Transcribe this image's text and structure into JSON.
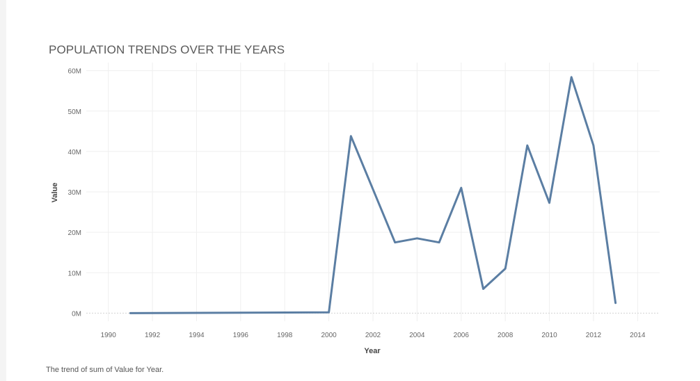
{
  "chart_data": {
    "type": "line",
    "title": "POPULATION TRENDS OVER THE YEARS",
    "caption": "The trend of sum of Value for Year.",
    "xlabel": "Year",
    "ylabel": "Value",
    "xlim": [
      1989,
      2015
    ],
    "ylim": [
      -2000000,
      62000000
    ],
    "x_ticks": [
      1990,
      1992,
      1994,
      1996,
      1998,
      2000,
      2002,
      2004,
      2006,
      2008,
      2010,
      2012,
      2014
    ],
    "y_ticks": [
      {
        "value": 0,
        "label": "0M"
      },
      {
        "value": 10000000,
        "label": "10M"
      },
      {
        "value": 20000000,
        "label": "20M"
      },
      {
        "value": 30000000,
        "label": "30M"
      },
      {
        "value": 40000000,
        "label": "40M"
      },
      {
        "value": 50000000,
        "label": "50M"
      },
      {
        "value": 60000000,
        "label": "60M"
      }
    ],
    "grid": true,
    "line_color": "#5b7ea3",
    "series": [
      {
        "x": [
          1991,
          2000,
          2001,
          2003,
          2004,
          2005,
          2006,
          2007,
          2008,
          2009,
          2010,
          2011,
          2012,
          2013
        ],
        "values": [
          0,
          200000,
          43800000,
          17500000,
          18500000,
          17500000,
          31000000,
          6000000,
          11000000,
          41500000,
          27300000,
          58400000,
          41500000,
          2500000
        ]
      }
    ]
  }
}
